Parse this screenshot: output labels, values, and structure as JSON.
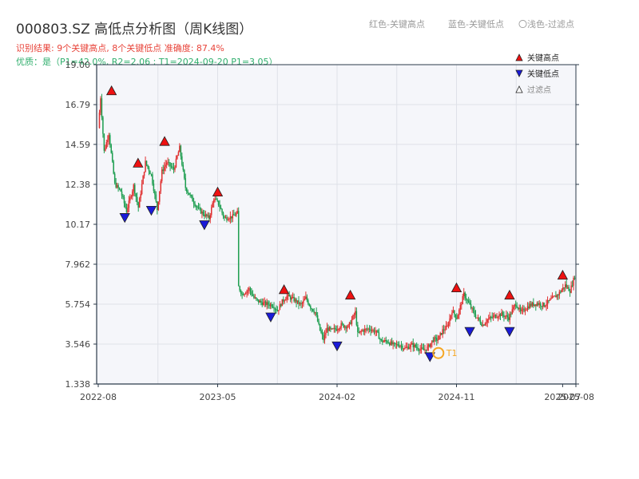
{
  "header": {
    "title": "000803.SZ 高低点分析图（周K线图）",
    "result_line": "识别结果: 9个关键高点, 8个关键低点  准确度: 87.4%",
    "quality_line": "优质：是（P1=42.0%, R2=2.06 ; T1=2024-09-20 P1=3.05）",
    "legend_red": "红色-关键高点",
    "legend_blue": "蓝色-关键低点",
    "legend_light": "〇浅色-过滤点"
  },
  "colors": {
    "up": "#e03030",
    "down": "#1e9e50",
    "high_marker": "#ee1111",
    "low_marker": "#1a1ad8",
    "filtered_marker": "#ffffff",
    "t1_ring": "#f5a623",
    "plot_bg": "#f5f6fa",
    "grid": "#dfe1e8",
    "axis": "#2b3a4a"
  },
  "chart_data": {
    "type": "candlestick",
    "title": "000803.SZ 高低点分析图（周K线图）",
    "xlabel": "",
    "ylabel": "",
    "ylim": [
      1.338,
      19.0
    ],
    "y_ticks": [
      "1.338",
      "3.546",
      "5.754",
      "7.962",
      "10.17",
      "12.38",
      "14.59",
      "16.79",
      "19.00"
    ],
    "x_ticks": [
      "2022-08",
      "2023-05",
      "2024-02",
      "2024-11",
      "2025-07",
      "2025-08"
    ],
    "x_range": [
      "2022-08",
      "2025-08"
    ],
    "grid": true,
    "legend_position": "top-right",
    "legend": [
      {
        "label": "关键高点",
        "marker": "triangle-up",
        "color": "#ee1111"
      },
      {
        "label": "关键低点",
        "marker": "triangle-down",
        "color": "#1a1ad8"
      },
      {
        "label": "过滤点",
        "marker": "triangle-up-hollow",
        "color": "#ffffff"
      }
    ],
    "close_path": [
      [
        0,
        15.5
      ],
      [
        2,
        17.2
      ],
      [
        5,
        14.2
      ],
      [
        9,
        15.2
      ],
      [
        14,
        12.4
      ],
      [
        19,
        12.0
      ],
      [
        24,
        10.9
      ],
      [
        30,
        12.3
      ],
      [
        34,
        11.1
      ],
      [
        40,
        13.6
      ],
      [
        45,
        12.9
      ],
      [
        50,
        11.0
      ],
      [
        54,
        13.1
      ],
      [
        58,
        13.6
      ],
      [
        64,
        13.2
      ],
      [
        69,
        14.4
      ],
      [
        74,
        12.2
      ],
      [
        80,
        11.5
      ],
      [
        85,
        11.0
      ],
      [
        90,
        10.7
      ],
      [
        94,
        10.5
      ],
      [
        98,
        11.6
      ],
      [
        102,
        11.3
      ],
      [
        107,
        10.5
      ],
      [
        114,
        10.6
      ],
      [
        118,
        10.8
      ],
      [
        119,
        6.7
      ],
      [
        122,
        6.3
      ],
      [
        128,
        6.6
      ],
      [
        132,
        6.1
      ],
      [
        136,
        5.9
      ],
      [
        140,
        5.8
      ],
      [
        148,
        5.7
      ],
      [
        152,
        5.4
      ],
      [
        156,
        5.9
      ],
      [
        160,
        6.2
      ],
      [
        166,
        6.0
      ],
      [
        172,
        5.7
      ],
      [
        176,
        6.1
      ],
      [
        180,
        5.6
      ],
      [
        184,
        5.3
      ],
      [
        188,
        4.3
      ],
      [
        191,
        3.8
      ],
      [
        194,
        4.4
      ],
      [
        198,
        4.3
      ],
      [
        202,
        4.4
      ],
      [
        206,
        4.6
      ],
      [
        212,
        4.5
      ],
      [
        218,
        5.3
      ],
      [
        220,
        4.1
      ],
      [
        224,
        4.3
      ],
      [
        230,
        4.4
      ],
      [
        236,
        4.2
      ],
      [
        240,
        3.7
      ],
      [
        245,
        3.7
      ],
      [
        250,
        3.5
      ],
      [
        256,
        3.5
      ],
      [
        260,
        3.3
      ],
      [
        266,
        3.5
      ],
      [
        272,
        3.3
      ],
      [
        276,
        3.2
      ],
      [
        280,
        3.4
      ],
      [
        284,
        3.8
      ],
      [
        288,
        3.8
      ],
      [
        292,
        4.3
      ],
      [
        296,
        4.5
      ],
      [
        300,
        5.4
      ],
      [
        304,
        5.0
      ],
      [
        306,
        5.4
      ],
      [
        310,
        6.3
      ],
      [
        314,
        5.8
      ],
      [
        320,
        5.1
      ],
      [
        326,
        4.6
      ],
      [
        330,
        4.9
      ],
      [
        336,
        5.1
      ],
      [
        342,
        5.2
      ],
      [
        348,
        5.0
      ],
      [
        354,
        5.8
      ],
      [
        358,
        5.3
      ],
      [
        362,
        5.5
      ],
      [
        366,
        5.7
      ],
      [
        372,
        5.8
      ],
      [
        378,
        5.7
      ],
      [
        384,
        6.0
      ],
      [
        390,
        6.3
      ],
      [
        396,
        6.8
      ],
      [
        400,
        6.5
      ],
      [
        404,
        7.3
      ]
    ],
    "key_highs": [
      {
        "date": "2022-09",
        "value": 17.2
      },
      {
        "date": "2022-11",
        "value": 13.2
      },
      {
        "date": "2023-01",
        "value": 14.4
      },
      {
        "date": "2023-05",
        "value": 11.6
      },
      {
        "date": "2023-10",
        "value": 6.2
      },
      {
        "date": "2024-03",
        "value": 5.9
      },
      {
        "date": "2024-11",
        "value": 6.3
      },
      {
        "date": "2025-03",
        "value": 5.9
      },
      {
        "date": "2025-07",
        "value": 7.0
      }
    ],
    "key_lows": [
      {
        "date": "2022-10",
        "value": 10.9
      },
      {
        "date": "2022-12",
        "value": 11.3
      },
      {
        "date": "2023-04",
        "value": 10.5
      },
      {
        "date": "2023-09",
        "value": 5.4
      },
      {
        "date": "2024-02",
        "value": 3.8
      },
      {
        "date": "2024-09",
        "value": 3.2
      },
      {
        "date": "2024-12",
        "value": 4.6
      },
      {
        "date": "2025-03",
        "value": 4.6
      }
    ],
    "t1": {
      "label": "T1",
      "date": "2024-09-20",
      "value": 3.05
    }
  }
}
